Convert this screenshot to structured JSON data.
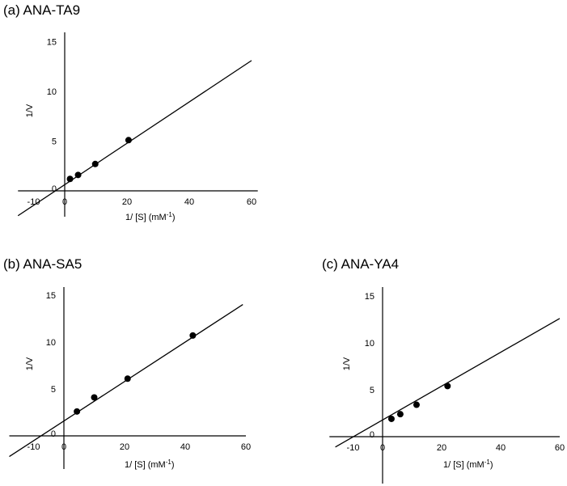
{
  "chart_data": [
    {
      "type": "scatter",
      "title": "(a) ANA-TA9",
      "xlabel": "1/ [S] (mM",
      "xlabel_sup": "-1",
      "xlabel_close": ")",
      "ylabel": "1/V",
      "xlim": [
        -15,
        62
      ],
      "ylim": [
        -2,
        15.5
      ],
      "xticks": [
        -10,
        0,
        20,
        40,
        60
      ],
      "yticks": [
        0,
        5,
        10,
        15
      ],
      "xtick_labels": [
        "-10",
        "0",
        "20",
        "40",
        "60"
      ],
      "ytick_labels": [
        "0",
        "5",
        "10",
        "15"
      ],
      "points": [
        {
          "x": 1.7,
          "y": 1.2
        },
        {
          "x": 4.3,
          "y": 1.6
        },
        {
          "x": 9.8,
          "y": 2.7
        },
        {
          "x": 20.5,
          "y": 5.1
        }
      ],
      "fit_line": {
        "x0": -15,
        "y0": -2.5,
        "x1": 60,
        "y1": 13.1
      }
    },
    {
      "type": "scatter",
      "title": "(b) ANA-SA5",
      "xlabel": "1/ [S] (mM",
      "xlabel_sup": "-1",
      "xlabel_close": ")",
      "ylabel": "1/V",
      "xlim": [
        -18,
        60
      ],
      "ylim": [
        -3.5,
        15.5
      ],
      "xticks": [
        -10,
        0,
        20,
        40,
        60
      ],
      "yticks": [
        0,
        5,
        10,
        15
      ],
      "xtick_labels": [
        "-10",
        "0",
        "20",
        "40",
        "60"
      ],
      "ytick_labels": [
        "0",
        "5",
        "10",
        "15"
      ],
      "points": [
        {
          "x": 4.3,
          "y": 2.6
        },
        {
          "x": 10.0,
          "y": 4.1
        },
        {
          "x": 21.0,
          "y": 6.1
        },
        {
          "x": 42.5,
          "y": 10.7
        }
      ],
      "fit_line": {
        "x0": -18,
        "y0": -2.2,
        "x1": 59,
        "y1": 14.0
      }
    },
    {
      "type": "scatter",
      "title": "(c) ANA-YA4",
      "xlabel": "1/ [S] (mM",
      "xlabel_sup": "-1",
      "xlabel_close": ")",
      "ylabel": "1/V",
      "xlim": [
        -18,
        60
      ],
      "ylim": [
        -5,
        15.5
      ],
      "xticks": [
        -10,
        0,
        20,
        40,
        60
      ],
      "yticks": [
        0,
        5,
        10,
        15
      ],
      "xtick_labels": [
        "-10",
        "0",
        "20",
        "40",
        "60"
      ],
      "ytick_labels": [
        "0",
        "5",
        "10",
        "15"
      ],
      "points": [
        {
          "x": 3.0,
          "y": 1.9
        },
        {
          "x": 6.0,
          "y": 2.4
        },
        {
          "x": 11.5,
          "y": 3.4
        },
        {
          "x": 22.0,
          "y": 5.4
        }
      ],
      "fit_line": {
        "x0": -16,
        "y0": -1.1,
        "x1": 60,
        "y1": 12.6
      }
    }
  ]
}
